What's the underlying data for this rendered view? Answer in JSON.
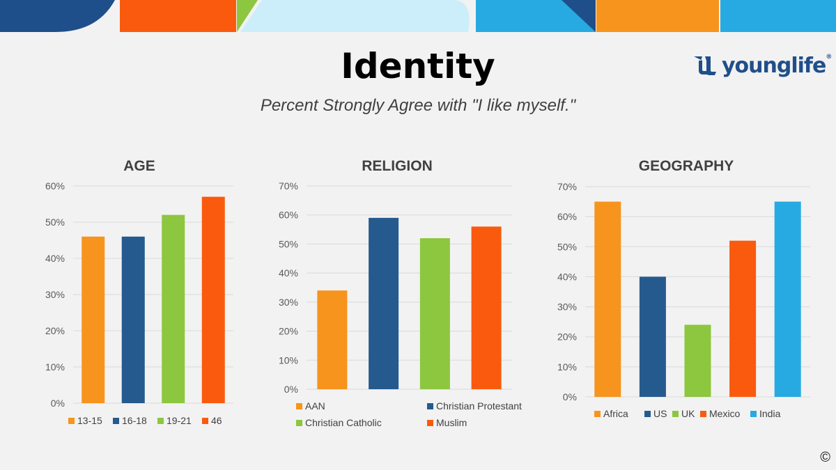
{
  "slide": {
    "title": "Identity",
    "subtitle": "Percent Strongly Agree with \"I like myself.\"",
    "logo_text": "younglife",
    "logo_reg": "®",
    "copyright": "©"
  },
  "colors": {
    "orange": "#f7941d",
    "navy": "#255a8f",
    "green": "#8dc63f",
    "red_orange": "#fa5a0e",
    "sky": "#27aae1",
    "top_light_blue": "#cceefb",
    "top_dark_blue": "#1f4f8a"
  },
  "chart_data": [
    {
      "type": "bar",
      "title": "AGE",
      "categories": [
        "13-15",
        "16-18",
        "19-21",
        "46"
      ],
      "values": [
        46,
        46,
        52,
        57
      ],
      "colors": [
        "#f7941d",
        "#255a8f",
        "#8dc63f",
        "#fa5a0e"
      ],
      "ylim": [
        0,
        60
      ],
      "yticks": [
        0,
        10,
        20,
        30,
        40,
        50,
        60
      ],
      "ytick_labels": [
        "0%",
        "10%",
        "20%",
        "30%",
        "40%",
        "50%",
        "60%"
      ],
      "grid": true,
      "legend": "bottom"
    },
    {
      "type": "bar",
      "title": "RELIGION",
      "categories": [
        "AAN",
        "Christian Protestant",
        "Christian Catholic",
        "Muslim"
      ],
      "values": [
        34,
        59,
        52,
        56
      ],
      "colors": [
        "#f7941d",
        "#255a8f",
        "#8dc63f",
        "#fa5a0e"
      ],
      "ylim": [
        0,
        70
      ],
      "yticks": [
        0,
        10,
        20,
        30,
        40,
        50,
        60,
        70
      ],
      "ytick_labels": [
        "0%",
        "10%",
        "20%",
        "30%",
        "40%",
        "50%",
        "60%",
        "70%"
      ],
      "grid": true,
      "legend": "bottom"
    },
    {
      "type": "bar",
      "title": "GEOGRAPHY",
      "categories": [
        "Africa",
        "US",
        "UK",
        "Mexico",
        "India"
      ],
      "values": [
        65,
        40,
        24,
        52,
        65
      ],
      "colors": [
        "#f7941d",
        "#255a8f",
        "#8dc63f",
        "#fa5a0e",
        "#27aae1"
      ],
      "ylim": [
        0,
        70
      ],
      "yticks": [
        0,
        10,
        20,
        30,
        40,
        50,
        60,
        70
      ],
      "ytick_labels": [
        "0%",
        "10%",
        "20%",
        "30%",
        "40%",
        "50%",
        "60%",
        "70%"
      ],
      "grid": true,
      "legend": "bottom"
    }
  ]
}
